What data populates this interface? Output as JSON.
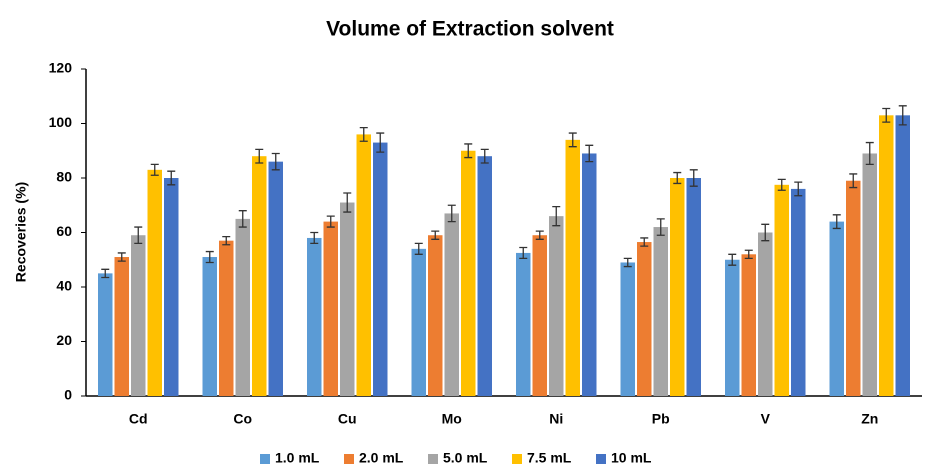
{
  "chart_data": {
    "type": "bar",
    "title": "Volume of Extraction solvent",
    "y_label": "Recoveries (%)",
    "categories": [
      "Cd",
      "Co",
      "Cu",
      "Mo",
      "Ni",
      "Pb",
      "V",
      "Zn"
    ],
    "series": [
      {
        "name": "1.0 mL",
        "color": "#5b9bd5",
        "values": [
          45,
          51,
          58,
          54,
          52.5,
          49,
          50,
          64
        ],
        "errors": [
          1.5,
          2,
          2,
          2,
          2,
          1.5,
          2,
          2.5
        ]
      },
      {
        "name": "2.0 mL",
        "color": "#ed7d31",
        "values": [
          51,
          57,
          64,
          59,
          59,
          56.5,
          52,
          79
        ],
        "errors": [
          1.5,
          1.5,
          2,
          1.5,
          1.5,
          1.5,
          1.5,
          2.5
        ]
      },
      {
        "name": "5.0 mL",
        "color": "#a5a5a5",
        "values": [
          59,
          65,
          71,
          67,
          66,
          62,
          60,
          89
        ],
        "errors": [
          3,
          3,
          3.5,
          3,
          3.5,
          3,
          3,
          4
        ]
      },
      {
        "name": "7.5 mL",
        "color": "#ffc000",
        "values": [
          83,
          88,
          96,
          90,
          94,
          80,
          77.5,
          103
        ],
        "errors": [
          2,
          2.5,
          2.5,
          2.5,
          2.5,
          2,
          2,
          2.5
        ]
      },
      {
        "name": "10 mL",
        "color": "#4472c4",
        "values": [
          80,
          86,
          93,
          88,
          89,
          80,
          76,
          103
        ],
        "errors": [
          2.5,
          3,
          3.5,
          2.5,
          3,
          3,
          2.5,
          3.5
        ]
      }
    ],
    "ylim": [
      0,
      120
    ],
    "yticks": [
      0,
      20,
      40,
      60,
      80,
      100,
      120
    ],
    "grid": false,
    "legend": "bottom"
  }
}
